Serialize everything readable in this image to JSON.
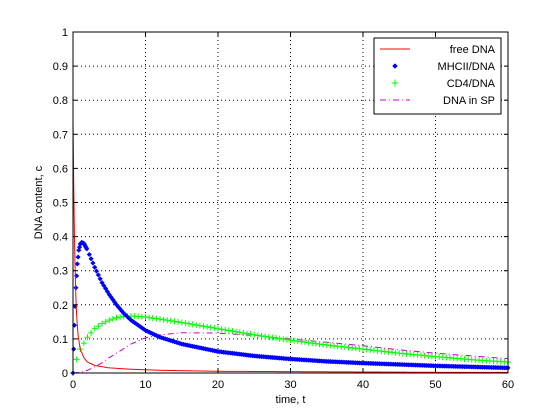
{
  "chart_data": {
    "type": "line",
    "title": "",
    "xlabel": "time, t",
    "ylabel": "DNA content, c",
    "xlim": [
      0,
      60
    ],
    "ylim": [
      0,
      1
    ],
    "xticks": [
      0,
      10,
      20,
      30,
      40,
      50,
      60
    ],
    "yticks": [
      0,
      0.1,
      0.2,
      0.3,
      0.4,
      0.5,
      0.6,
      0.7,
      0.8,
      0.9,
      1
    ],
    "ytick_labels": [
      "0",
      "0.1",
      "0.2",
      "0.3",
      "0.4",
      "0.5",
      "0.6",
      "0.7",
      "0.8",
      "0.9",
      "1"
    ],
    "grid": true,
    "legend_position": "top-right",
    "series": [
      {
        "name": "free DNA",
        "style": "solid-line",
        "color": "#ff0000",
        "x": [
          0,
          0.1,
          0.2,
          0.3,
          0.4,
          0.5,
          0.7,
          1.0,
          1.5,
          2,
          3,
          5,
          8,
          12,
          20,
          30,
          40,
          50,
          60
        ],
        "y": [
          0.74,
          0.55,
          0.4,
          0.3,
          0.22,
          0.17,
          0.11,
          0.07,
          0.045,
          0.032,
          0.022,
          0.015,
          0.011,
          0.008,
          0.005,
          0.004,
          0.003,
          0.002,
          0.002
        ]
      },
      {
        "name": "MHCII/DNA",
        "style": "diamond-markers",
        "color": "#0000ff",
        "x": [
          0,
          0.2,
          0.4,
          0.6,
          0.8,
          1.0,
          1.2,
          1.5,
          2,
          2.5,
          3,
          4,
          5,
          6,
          7,
          8,
          10,
          12,
          15,
          20,
          25,
          30,
          35,
          40,
          45,
          50,
          55,
          60
        ],
        "y": [
          0,
          0.14,
          0.25,
          0.32,
          0.36,
          0.378,
          0.383,
          0.38,
          0.36,
          0.335,
          0.31,
          0.265,
          0.23,
          0.2,
          0.175,
          0.155,
          0.125,
          0.105,
          0.085,
          0.063,
          0.05,
          0.041,
          0.034,
          0.029,
          0.025,
          0.021,
          0.018,
          0.015
        ]
      },
      {
        "name": "CD4/DNA",
        "style": "plus-markers",
        "color": "#00ff00",
        "x": [
          0,
          0.5,
          1,
          2,
          3,
          4,
          5,
          6,
          7,
          8,
          9,
          10,
          12,
          15,
          20,
          25,
          30,
          35,
          40,
          45,
          50,
          55,
          60
        ],
        "y": [
          0,
          0.04,
          0.07,
          0.105,
          0.13,
          0.145,
          0.155,
          0.162,
          0.166,
          0.167,
          0.166,
          0.164,
          0.158,
          0.148,
          0.13,
          0.112,
          0.096,
          0.082,
          0.07,
          0.058,
          0.048,
          0.039,
          0.032
        ]
      },
      {
        "name": "DNA in SP",
        "style": "dash-dot-line",
        "color": "#cc00cc",
        "x": [
          0,
          1,
          2,
          3,
          4,
          5,
          6,
          8,
          10,
          12,
          15,
          20,
          25,
          30,
          35,
          40,
          45,
          50,
          55,
          60
        ],
        "y": [
          0,
          0.002,
          0.008,
          0.018,
          0.03,
          0.045,
          0.058,
          0.085,
          0.103,
          0.112,
          0.118,
          0.117,
          0.11,
          0.1,
          0.09,
          0.08,
          0.068,
          0.058,
          0.05,
          0.042
        ]
      }
    ]
  }
}
